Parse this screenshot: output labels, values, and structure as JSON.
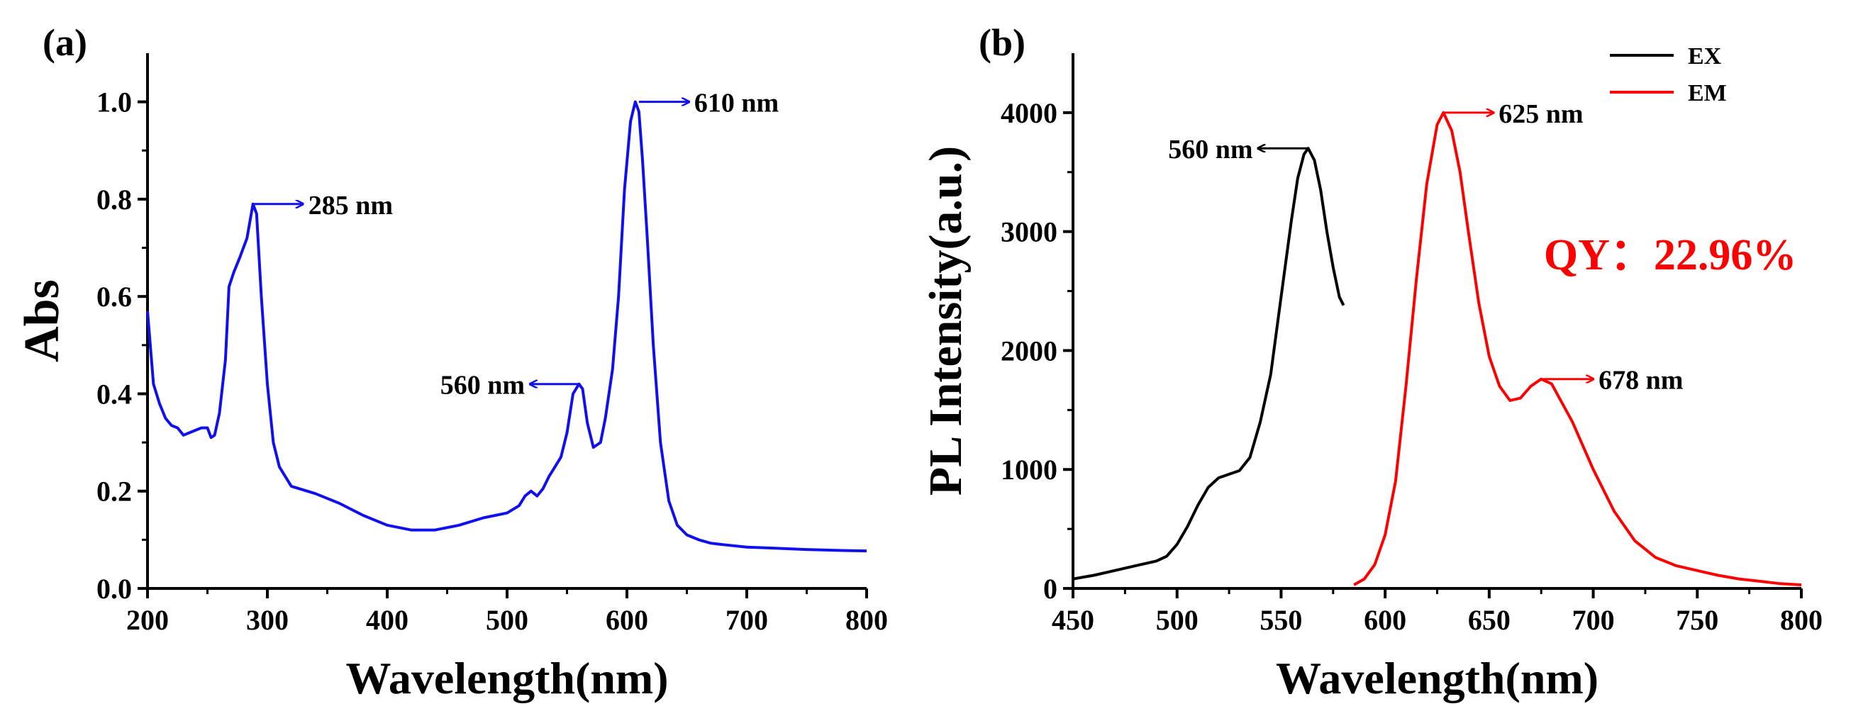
{
  "chart_data": [
    {
      "type": "line",
      "panel_label": "(a)",
      "xlabel": "Wavelength(nm)",
      "ylabel": "Abs",
      "xlim": [
        200,
        800
      ],
      "ylim": [
        0,
        1.1
      ],
      "xticks": [
        200,
        300,
        400,
        500,
        600,
        700,
        800
      ],
      "yticks": [
        0.0,
        0.2,
        0.4,
        0.6,
        0.8,
        1.0
      ],
      "xtick_labels": [
        "200",
        "300",
        "400",
        "500",
        "600",
        "700",
        "800"
      ],
      "ytick_labels": [
        "0.0",
        "0.2",
        "0.4",
        "0.6",
        "0.8",
        "1.0"
      ],
      "grid": false,
      "series": [
        {
          "name": "Abs",
          "color": "#1010ee",
          "x": [
            200,
            205,
            210,
            215,
            220,
            225,
            230,
            235,
            240,
            245,
            250,
            253,
            256,
            260,
            265,
            268,
            272,
            277,
            283,
            288,
            291,
            295,
            300,
            305,
            310,
            320,
            340,
            360,
            380,
            400,
            420,
            440,
            460,
            480,
            500,
            510,
            515,
            520,
            525,
            530,
            535,
            540,
            545,
            550,
            555,
            560,
            563,
            567,
            572,
            578,
            582,
            588,
            593,
            598,
            603,
            607,
            610,
            613,
            617,
            622,
            628,
            635,
            642,
            650,
            660,
            670,
            680,
            700,
            720,
            750,
            780,
            800
          ],
          "y": [
            0.57,
            0.42,
            0.38,
            0.35,
            0.335,
            0.33,
            0.315,
            0.32,
            0.325,
            0.33,
            0.33,
            0.31,
            0.315,
            0.36,
            0.47,
            0.62,
            0.65,
            0.68,
            0.72,
            0.79,
            0.77,
            0.6,
            0.42,
            0.3,
            0.25,
            0.21,
            0.195,
            0.175,
            0.15,
            0.13,
            0.12,
            0.12,
            0.13,
            0.145,
            0.155,
            0.17,
            0.19,
            0.2,
            0.19,
            0.205,
            0.23,
            0.25,
            0.27,
            0.32,
            0.4,
            0.42,
            0.41,
            0.34,
            0.29,
            0.3,
            0.35,
            0.45,
            0.6,
            0.82,
            0.96,
            1.0,
            0.98,
            0.88,
            0.72,
            0.5,
            0.3,
            0.18,
            0.13,
            0.11,
            0.1,
            0.093,
            0.09,
            0.085,
            0.083,
            0.08,
            0.078,
            0.077
          ]
        }
      ],
      "annotations": [
        {
          "text": "285 nm",
          "x": 288,
          "y": 0.79,
          "direction": "right"
        },
        {
          "text": "560 nm",
          "x": 561,
          "y": 0.42,
          "direction": "left"
        },
        {
          "text": "610 nm",
          "x": 610,
          "y": 1.0,
          "direction": "right"
        }
      ]
    },
    {
      "type": "line",
      "panel_label": "(b)",
      "xlabel": "Wavelength(nm)",
      "ylabel": "PL Intensity(a.u.)",
      "xlim": [
        450,
        800
      ],
      "ylim": [
        0,
        4500
      ],
      "xticks": [
        450,
        500,
        550,
        600,
        650,
        700,
        750,
        800
      ],
      "yticks": [
        0,
        1000,
        2000,
        3000,
        4000
      ],
      "xtick_labels": [
        "450",
        "500",
        "550",
        "600",
        "650",
        "700",
        "750",
        "800"
      ],
      "ytick_labels": [
        "0",
        "1000",
        "2000",
        "3000",
        "4000"
      ],
      "grid": false,
      "legend": {
        "position": "top-right",
        "entries": [
          "EX",
          "EM"
        ]
      },
      "series": [
        {
          "name": "EX",
          "color": "#000000",
          "x": [
            450,
            460,
            470,
            480,
            490,
            495,
            500,
            505,
            510,
            515,
            520,
            525,
            530,
            535,
            540,
            545,
            550,
            555,
            558,
            561,
            563,
            566,
            569,
            572,
            575,
            578,
            580
          ],
          "y": [
            80,
            110,
            150,
            190,
            230,
            270,
            370,
            520,
            700,
            850,
            930,
            960,
            990,
            1100,
            1400,
            1800,
            2450,
            3100,
            3450,
            3650,
            3700,
            3600,
            3350,
            3000,
            2700,
            2450,
            2380
          ]
        },
        {
          "name": "EM",
          "color": "#ff0000",
          "x": [
            585,
            590,
            595,
            600,
            605,
            610,
            615,
            620,
            625,
            628,
            632,
            636,
            640,
            645,
            650,
            655,
            660,
            665,
            670,
            675,
            680,
            690,
            700,
            710,
            720,
            730,
            740,
            750,
            760,
            770,
            780,
            790,
            800
          ],
          "y": [
            30,
            80,
            200,
            450,
            900,
            1700,
            2600,
            3400,
            3900,
            4000,
            3850,
            3500,
            3000,
            2400,
            1950,
            1700,
            1580,
            1600,
            1700,
            1760,
            1720,
            1400,
            1000,
            650,
            400,
            260,
            190,
            150,
            110,
            80,
            60,
            40,
            30
          ]
        }
      ],
      "annotations": [
        {
          "text": "560 nm",
          "x": 563,
          "y": 3700,
          "direction": "left",
          "color": "#000000"
        },
        {
          "text": "625 nm",
          "x": 628,
          "y": 4000,
          "direction": "right",
          "color": "#ff0000"
        },
        {
          "text": "678 nm",
          "x": 676,
          "y": 1760,
          "direction": "right",
          "color": "#ff0000"
        },
        {
          "text": "QY：22.96%",
          "x": 737,
          "y": 2800,
          "direction": "none",
          "color": "#ff0000",
          "style": "large"
        }
      ]
    }
  ]
}
